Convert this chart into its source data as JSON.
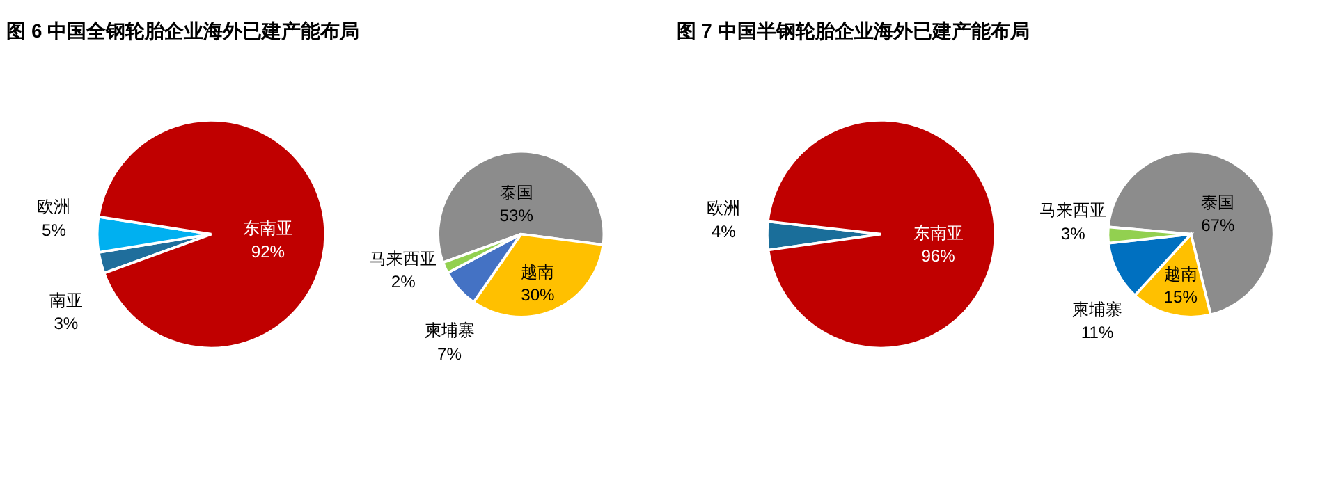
{
  "chart_data": [
    {
      "type": "pie",
      "title": "图 6 中国全钢轮胎企业海外已建产能布局",
      "categories": [
        "南亚",
        "欧洲",
        "东南亚"
      ],
      "values": [
        3,
        5,
        92
      ],
      "colors": [
        "#1f6e9c",
        "#00b0f0",
        "#c00000"
      ],
      "value_labels": [
        "3%",
        "5%",
        "92%"
      ]
    },
    {
      "type": "pie",
      "categories": [
        "泰国",
        "越南",
        "柬埔寨",
        "马来西亚"
      ],
      "values": [
        53,
        30,
        7,
        2
      ],
      "colors": [
        "#8c8c8c",
        "#ffc000",
        "#4472c4",
        "#92d050"
      ],
      "value_labels": [
        "53%",
        "30%",
        "7%",
        "2%"
      ]
    },
    {
      "type": "pie",
      "title": "图 7 中国半钢轮胎企业海外已建产能布局",
      "categories": [
        "欧洲",
        "东南亚"
      ],
      "values": [
        4,
        96
      ],
      "colors": [
        "#1a6e9a",
        "#c00000"
      ],
      "value_labels": [
        "4%",
        "96%"
      ]
    },
    {
      "type": "pie",
      "categories": [
        "泰国",
        "越南",
        "柬埔寨",
        "马来西亚"
      ],
      "values": [
        67,
        15,
        11,
        3
      ],
      "colors": [
        "#8c8c8c",
        "#ffc000",
        "#0070c0",
        "#92d050"
      ],
      "value_labels": [
        "67%",
        "15%",
        "11%",
        "3%"
      ]
    }
  ]
}
